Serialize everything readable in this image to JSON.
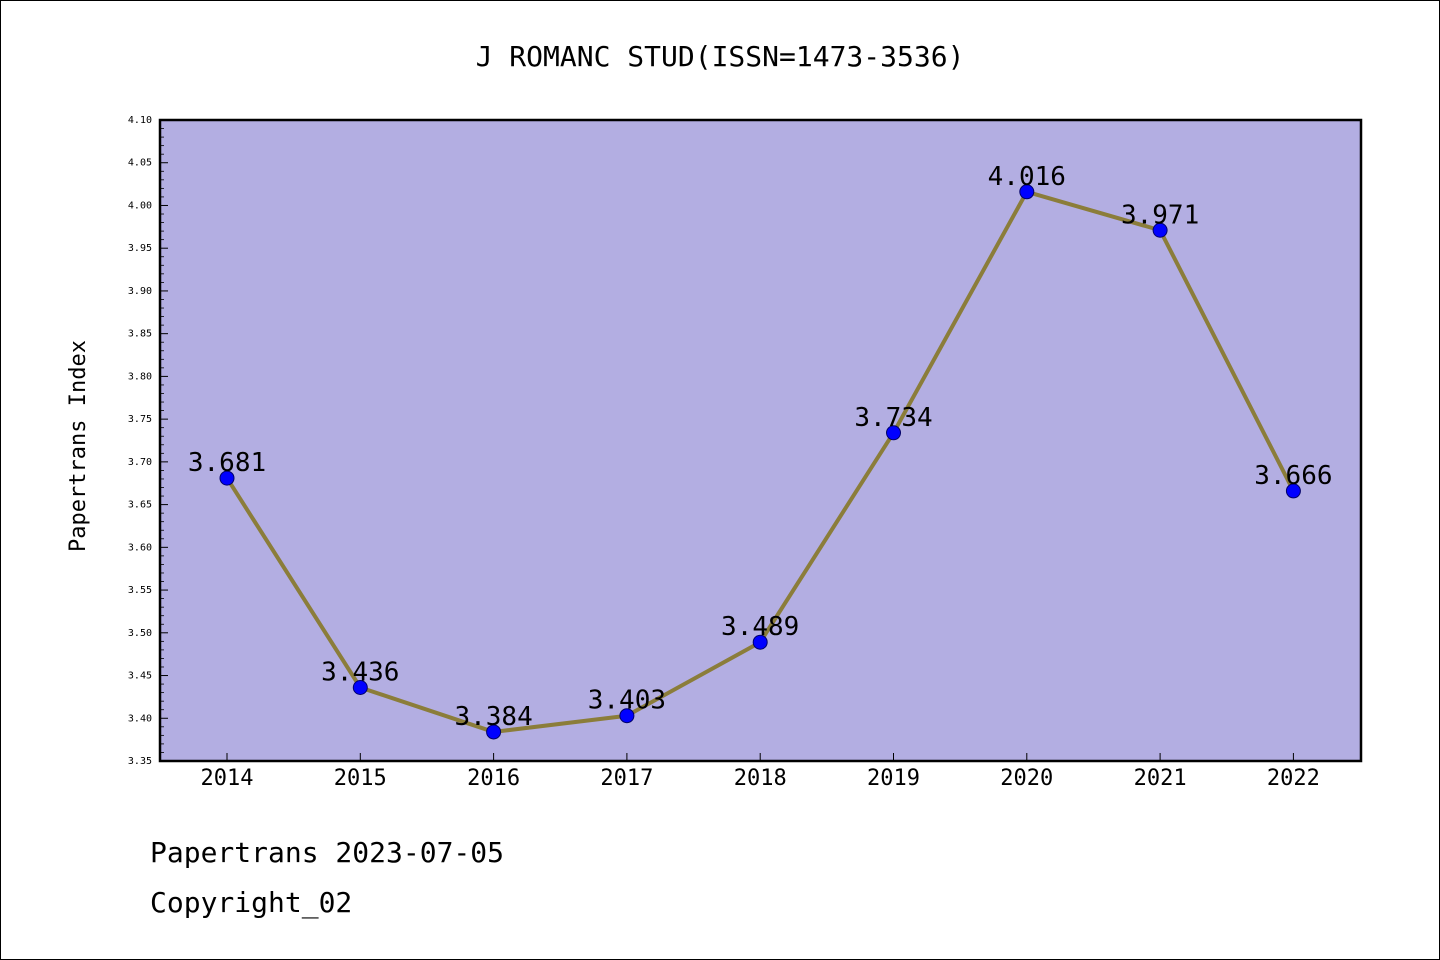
{
  "chart_data": {
    "type": "line",
    "title": "J ROMANC STUD(ISSN=1473-3536)",
    "xlabel": "",
    "ylabel": "Papertrans Index",
    "categories": [
      "2014",
      "2015",
      "2016",
      "2017",
      "2018",
      "2019",
      "2020",
      "2021",
      "2022"
    ],
    "series": [
      {
        "values": [
          3.681,
          3.436,
          3.384,
          3.403,
          3.489,
          3.734,
          4.016,
          3.971,
          3.666
        ],
        "labels": [
          "3.681",
          "3.436",
          "3.384",
          "3.403",
          "3.489",
          "3.734",
          "4.016",
          "3.971",
          "3.666"
        ]
      }
    ],
    "ylim": [
      3.35,
      4.1
    ],
    "yticks": [
      "3.35",
      "3.40",
      "3.45",
      "3.50",
      "3.55",
      "3.60",
      "3.65",
      "3.70",
      "3.75",
      "3.80",
      "3.85",
      "3.90",
      "3.95",
      "4.00",
      "4.05",
      "4.10"
    ],
    "grid": false,
    "colors": {
      "plot_background": "#b3aee2",
      "line": "#8b7d3a",
      "marker": "#0000ff"
    }
  },
  "footer": {
    "line1": "Papertrans 2023-07-05",
    "line2": "Copyright_02"
  }
}
